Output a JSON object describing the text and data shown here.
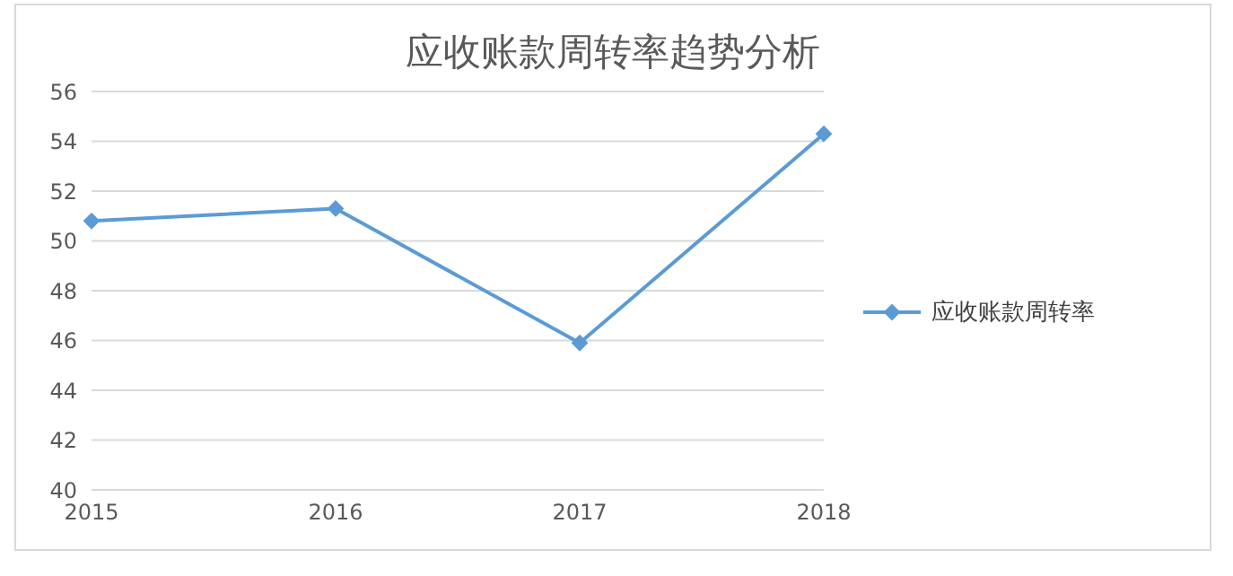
{
  "chart_data": {
    "type": "line",
    "title": "应收账款周转率趋势分析",
    "categories": [
      "2015",
      "2016",
      "2017",
      "2018"
    ],
    "series": [
      {
        "name": "应收账款周转率",
        "color": "#5b9bd5",
        "values": [
          50.8,
          51.3,
          45.9,
          54.3
        ]
      }
    ],
    "ylim": [
      40,
      56
    ],
    "yticks": [
      40,
      42,
      44,
      46,
      48,
      50,
      52,
      54,
      56
    ],
    "grid": "y",
    "legend": "right",
    "marker": "diamond",
    "line_style": "solid"
  }
}
